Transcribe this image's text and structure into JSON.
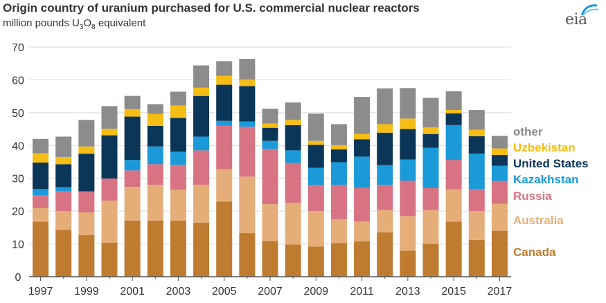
{
  "header": {
    "title": "Origin country of uranium purchased for U.S. commercial nuclear reactors",
    "subtitle_prefix": "million pounds U",
    "subtitle_sub1": "3",
    "subtitle_mid": "O",
    "subtitle_sub2": "8",
    "subtitle_suffix": " equivalent"
  },
  "logo": {
    "text": "eia",
    "name": "eia-logo"
  },
  "chart_data": {
    "type": "bar",
    "stacked": true,
    "grid": true,
    "ylim": [
      0,
      70
    ],
    "y_ticks": [
      0,
      10,
      20,
      30,
      40,
      50,
      60,
      70
    ],
    "x_tick_labels": [
      "1997",
      "1999",
      "2001",
      "2003",
      "2005",
      "2007",
      "2009",
      "2011",
      "2013",
      "2015",
      "2017"
    ],
    "categories": [
      "1997",
      "1998",
      "1999",
      "2000",
      "2001",
      "2002",
      "2003",
      "2004",
      "2005",
      "2006",
      "2007",
      "2008",
      "2009",
      "2010",
      "2011",
      "2012",
      "2013",
      "2014",
      "2015",
      "2016",
      "2017"
    ],
    "legend_placement": "right",
    "series": [
      {
        "name": "Canada",
        "color": "#BF7B30",
        "values": [
          16.8,
          14.3,
          12.7,
          10.4,
          17.1,
          17.1,
          17.1,
          16.5,
          22.9,
          13.3,
          10.9,
          9.8,
          9.2,
          10.3,
          10.8,
          13.5,
          7.9,
          10.0,
          16.8,
          11.2,
          14.0
        ]
      },
      {
        "name": "Australia",
        "color": "#E5AE79",
        "values": [
          4.1,
          5.7,
          6.9,
          12.8,
          10.3,
          10.9,
          9.4,
          11.5,
          9.9,
          17.2,
          11.2,
          12.7,
          10.8,
          7.2,
          6.0,
          6.8,
          10.6,
          10.3,
          9.8,
          8.8,
          8.2
        ]
      },
      {
        "name": "Russia",
        "color": "#D77383",
        "values": [
          3.9,
          6.0,
          6.4,
          6.7,
          5.0,
          6.3,
          7.6,
          10.5,
          13.2,
          15.2,
          16.9,
          12.2,
          8.0,
          10.5,
          10.3,
          7.7,
          10.8,
          6.7,
          9.0,
          6.7,
          7.0
        ]
      },
      {
        "name": "Kazakhstan",
        "color": "#1B9ADA",
        "values": [
          1.9,
          1.3,
          0,
          0,
          3.2,
          5.4,
          4.0,
          4.2,
          1.5,
          1.6,
          2.4,
          3.8,
          5.2,
          6.9,
          9.5,
          6.0,
          6.4,
          12.3,
          10.6,
          10.8,
          4.6
        ]
      },
      {
        "name": "United States",
        "color": "#0C3657",
        "values": [
          8.1,
          7.0,
          11.5,
          13.2,
          13.2,
          6.3,
          10.3,
          12.4,
          11.0,
          10.8,
          4.0,
          7.7,
          7.0,
          3.9,
          5.3,
          9.9,
          9.3,
          4.2,
          3.6,
          5.3,
          3.3
        ]
      },
      {
        "name": "Uzbekistan",
        "color": "#F6BD14",
        "values": [
          2.8,
          2.2,
          2.2,
          2.0,
          2.3,
          3.6,
          3.8,
          2.5,
          2.7,
          2.0,
          1.3,
          1.6,
          1.2,
          1.3,
          1.6,
          2.6,
          3.2,
          2.0,
          1.0,
          2.0,
          2.0
        ]
      },
      {
        "name": "other",
        "color": "#8C8C8C",
        "values": [
          4.4,
          6.2,
          8.1,
          6.9,
          4.0,
          3.0,
          4.2,
          6.8,
          4.5,
          6.3,
          4.5,
          5.3,
          8.3,
          6.4,
          11.3,
          10.9,
          9.3,
          9.0,
          5.7,
          6.0,
          3.8
        ]
      }
    ]
  }
}
